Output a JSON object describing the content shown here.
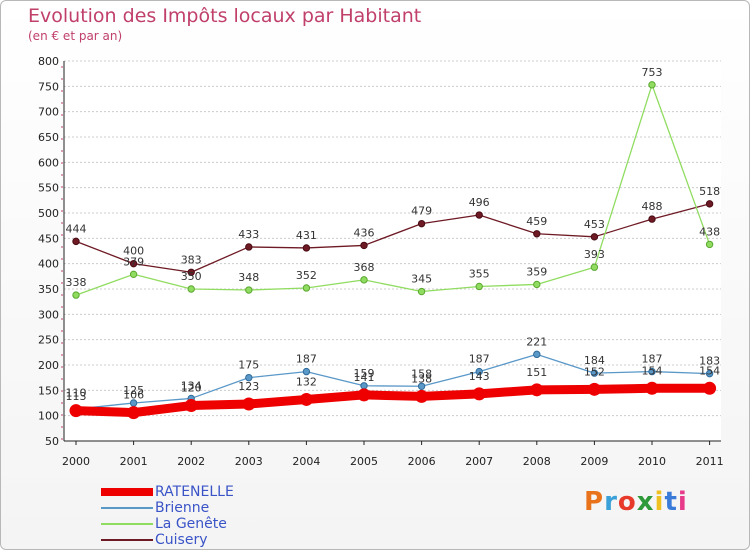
{
  "header": {
    "title": "Evolution des Impôts locaux par Habitant",
    "subtitle": "(en € et par an)"
  },
  "logo": {
    "text": "Proxiti",
    "colors": [
      "#e8731a",
      "#3aa0d8",
      "#e83a2a",
      "#2f9a3a",
      "#f0c020",
      "#3a7ad8",
      "#e83a8a"
    ]
  },
  "chart_data": {
    "type": "line",
    "title": "Evolution des Impôts locaux par Habitant",
    "subtitle": "(en € et par an)",
    "xlabel": "",
    "ylabel": "",
    "categories": [
      "2000",
      "2001",
      "2002",
      "2003",
      "2004",
      "2005",
      "2006",
      "2007",
      "2008",
      "2009",
      "2010",
      "2011"
    ],
    "ylim": [
      50,
      800
    ],
    "yticks": [
      50,
      100,
      150,
      200,
      250,
      300,
      350,
      400,
      450,
      500,
      550,
      600,
      650,
      700,
      750,
      800
    ],
    "grid": "horizontal",
    "legend_position": "bottom-left",
    "series": [
      {
        "name": "Cuisery",
        "color": "#6e1a24",
        "values": [
          444,
          400,
          383,
          433,
          431,
          436,
          479,
          496,
          459,
          453,
          488,
          518
        ]
      },
      {
        "name": "La Genête",
        "color": "#90dc60",
        "values": [
          338,
          379,
          350,
          348,
          352,
          368,
          345,
          355,
          359,
          393,
          753,
          438
        ]
      },
      {
        "name": "Brienne",
        "color": "#5a98c8",
        "values": [
          113,
          125,
          134,
          175,
          187,
          159,
          158,
          187,
          221,
          184,
          187,
          183
        ]
      },
      {
        "name": "RATENELLE",
        "color": "#ee0000",
        "values": [
          110,
          106,
          120,
          123,
          132,
          141,
          138,
          143,
          151,
          152,
          154,
          154
        ]
      }
    ],
    "legend_order": [
      "RATENELLE",
      "Brienne",
      "La Genête",
      "Cuisery"
    ]
  }
}
